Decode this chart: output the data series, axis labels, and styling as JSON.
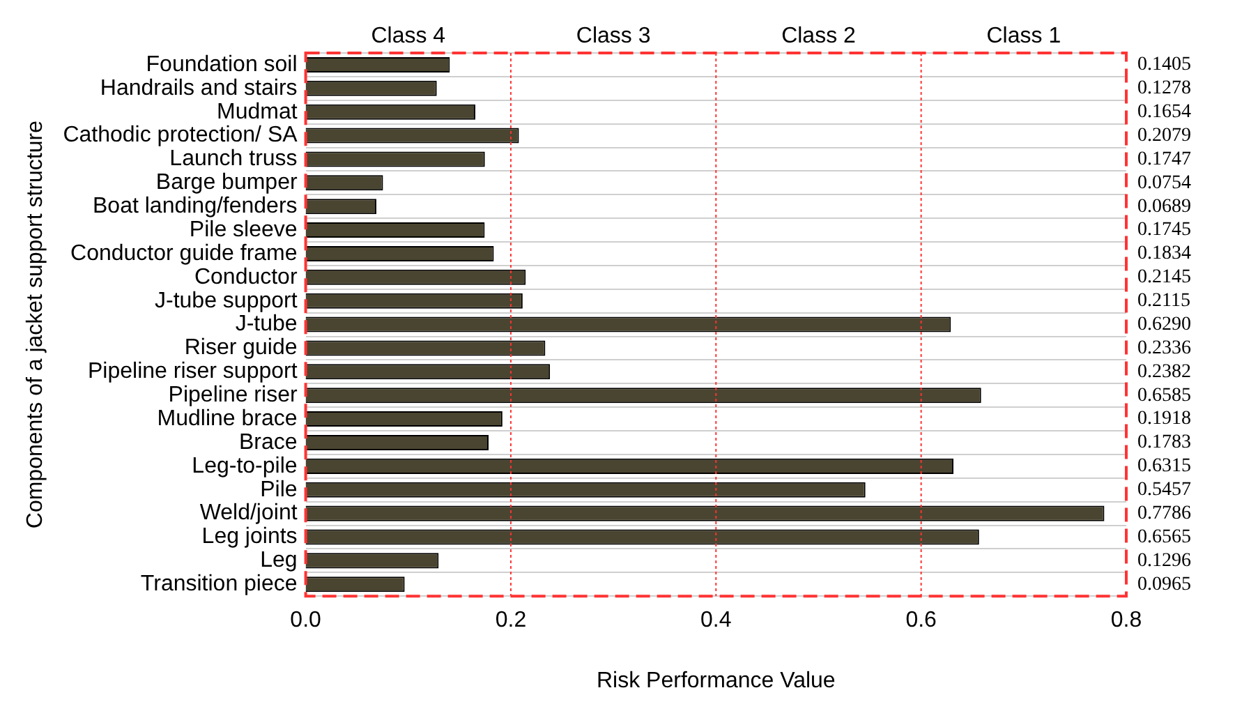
{
  "chart_data": {
    "type": "bar",
    "orientation": "horizontal",
    "xlabel": "Risk Performance Value",
    "ylabel": "Components of a jacket support structure",
    "categories": [
      "Foundation soil",
      "Handrails and stairs",
      "Mudmat",
      "Cathodic protection/ SA",
      "Launch truss",
      "Barge bumper",
      "Boat landing/fenders",
      "Pile sleeve",
      "Conductor guide frame",
      "Conductor",
      "J-tube support",
      "J-tube",
      "Riser guide",
      "Pipeline riser support",
      "Pipeline riser",
      "Mudline brace",
      "Brace",
      "Leg-to-pile",
      "Pile",
      "Weld/joint",
      "Leg joints",
      "Leg",
      "Transition piece"
    ],
    "values": [
      0.1405,
      0.1278,
      0.1654,
      0.2079,
      0.1747,
      0.0754,
      0.0689,
      0.1745,
      0.1834,
      0.2145,
      0.2115,
      0.629,
      0.2336,
      0.2382,
      0.6585,
      0.1918,
      0.1783,
      0.6315,
      0.5457,
      0.7786,
      0.6565,
      0.1296,
      0.0965
    ],
    "value_labels": [
      "0.1405",
      "0.1278",
      "0.1654",
      "0.2079",
      "0.1747",
      "0.0754",
      "0.0689",
      "0.1745",
      "0.1834",
      "0.2145",
      "0.2115",
      "0.6290",
      "0.2336",
      "0.2382",
      "0.6585",
      "0.1918",
      "0.1783",
      "0.6315",
      "0.5457",
      "0.7786",
      "0.6565",
      "0.1296",
      "0.0965"
    ],
    "color": "#4a4530",
    "xlim": [
      0,
      0.8
    ],
    "xticks": [
      {
        "value": 0,
        "label": "0.0"
      },
      {
        "value": 0.2,
        "label": "0.2"
      },
      {
        "value": 0.4,
        "label": "0.4"
      },
      {
        "value": 0.6,
        "label": "0.6"
      },
      {
        "value": 0.8,
        "label": "0.8"
      }
    ],
    "ref_lines": [
      {
        "axis": "x",
        "value": 0.2,
        "color": "#ff3333",
        "line_style": "dotted"
      },
      {
        "axis": "x",
        "value": 0.4,
        "color": "#ff3333",
        "line_style": "dotted"
      },
      {
        "axis": "x",
        "value": 0.6,
        "color": "#ff3333",
        "line_style": "dotted"
      }
    ],
    "annotations": [
      "Class 4",
      "Class 3",
      "Class 2",
      "Class 1"
    ],
    "grid": "y",
    "legend": false
  }
}
